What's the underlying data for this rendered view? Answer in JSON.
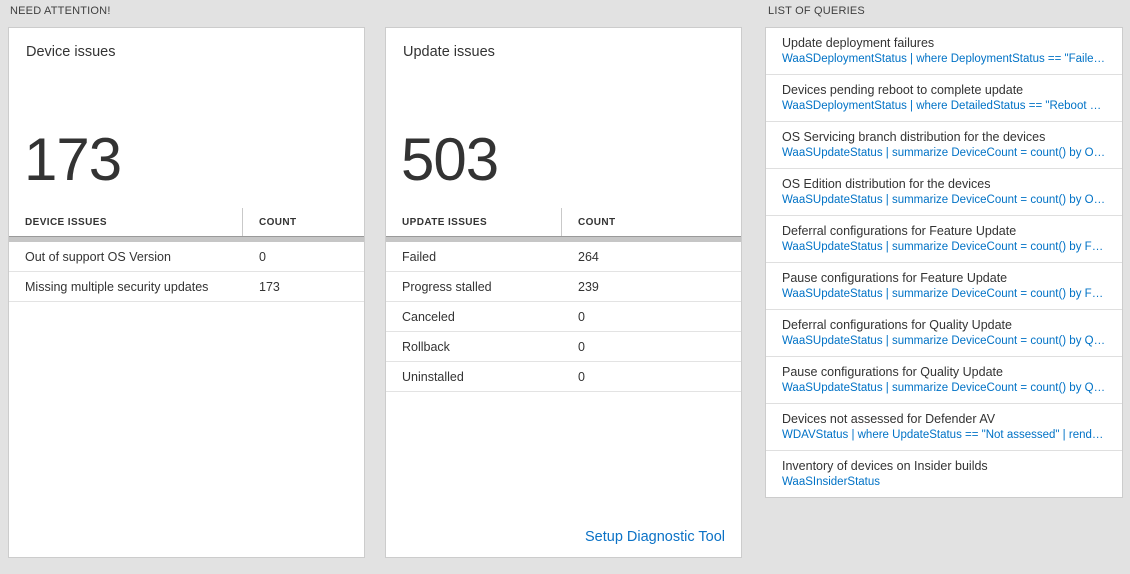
{
  "colors": {
    "accent_blue": "#0072c6",
    "background": "#e2e2e2"
  },
  "need_attention": {
    "title": "NEED ATTENTION!"
  },
  "device_card": {
    "title": "Device issues",
    "big_count": "173",
    "table": {
      "header_label": "DEVICE ISSUES",
      "header_count": "COUNT",
      "rows": [
        {
          "label": "Out of support OS Version",
          "count": "0"
        },
        {
          "label": "Missing multiple security updates",
          "count": "173"
        }
      ]
    }
  },
  "update_card": {
    "title": "Update issues",
    "big_count": "503",
    "table": {
      "header_label": "UPDATE ISSUES",
      "header_count": "COUNT",
      "rows": [
        {
          "label": "Failed",
          "count": "264"
        },
        {
          "label": "Progress stalled",
          "count": "239"
        },
        {
          "label": "Canceled",
          "count": "0"
        },
        {
          "label": "Rollback",
          "count": "0"
        },
        {
          "label": "Uninstalled",
          "count": "0"
        }
      ]
    },
    "setup_link": "Setup Diagnostic Tool"
  },
  "query_section": {
    "title": "LIST OF QUERIES",
    "items": [
      {
        "title": "Update deployment failures",
        "query": "WaaSDeploymentStatus | where DeploymentStatus == \"Failed\" |…"
      },
      {
        "title": "Devices pending reboot to complete update",
        "query": "WaaSDeploymentStatus | where DetailedStatus == \"Reboot pend…"
      },
      {
        "title": "OS Servicing branch distribution for the devices",
        "query": "WaaSUpdateStatus | summarize DeviceCount = count() by OSSer…"
      },
      {
        "title": "OS Edition distribution for the devices",
        "query": "WaaSUpdateStatus | summarize DeviceCount = count() by OSEdit…"
      },
      {
        "title": "Deferral configurations for Feature Update",
        "query": "WaaSUpdateStatus | summarize DeviceCount = count() by Featur…"
      },
      {
        "title": "Pause configurations for Feature Update",
        "query": "WaaSUpdateStatus | summarize DeviceCount = count() by Featur…"
      },
      {
        "title": "Deferral configurations for Quality Update",
        "query": "WaaSUpdateStatus | summarize DeviceCount = count() by Qualit…"
      },
      {
        "title": "Pause configurations for Quality Update",
        "query": "WaaSUpdateStatus | summarize DeviceCount = count() by Qualit…"
      },
      {
        "title": "Devices not assessed for Defender AV",
        "query": "WDAVStatus | where UpdateStatus == \"Not assessed\" | render ta…"
      },
      {
        "title": "Inventory of devices on Insider builds",
        "query": "WaaSInsiderStatus"
      }
    ]
  }
}
